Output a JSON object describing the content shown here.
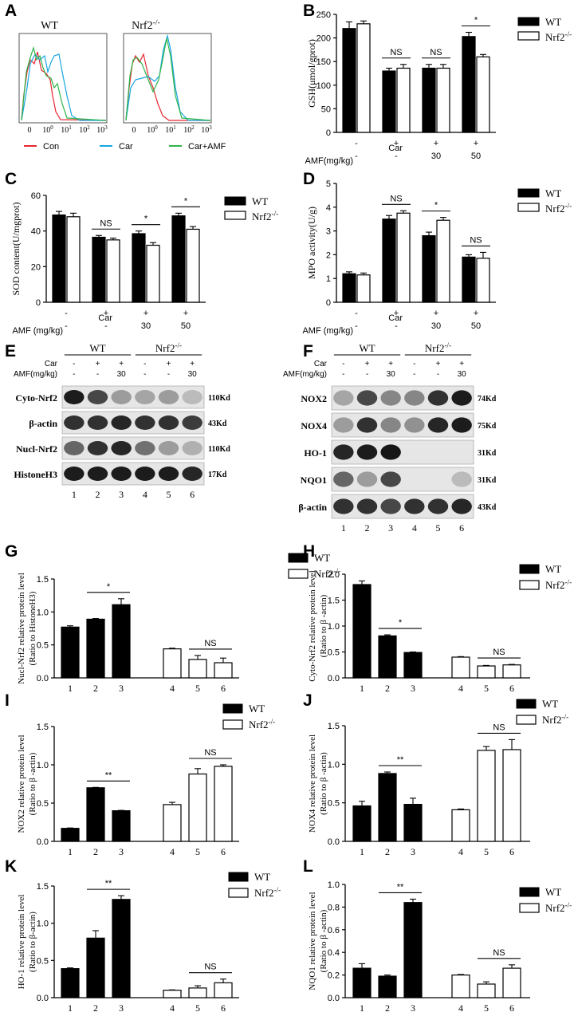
{
  "panel_letters": {
    "A": "A",
    "B": "B",
    "C": "C",
    "D": "D",
    "E": "E",
    "F": "F",
    "G": "G",
    "H": "H",
    "I": "I",
    "J": "J",
    "K": "K",
    "L": "L"
  },
  "colors": {
    "wt": "#000000",
    "ko": "#ffffff",
    "con": "#e8262f",
    "car": "#16a6e0",
    "car_amf": "#2db54a"
  },
  "panel_a": {
    "title_wt": "WT",
    "title_ko": "Nrf2",
    "title_ko_sup": "-/-",
    "legend": [
      "Con",
      "Car",
      "Car+AMF"
    ],
    "ticks": [
      "0",
      "10",
      "10",
      "10",
      "10"
    ],
    "tick_sups": [
      "",
      "0",
      "1",
      "2",
      "3"
    ]
  },
  "legend_wt": "WT",
  "legend_ko": "Nrf2",
  "legend_ko_sup": "-/-",
  "treat": {
    "car_label": "Car",
    "amf_label_B": "AMF(mg/kg)",
    "amf_label_C": "AMF (mg/kg)",
    "car_row": [
      "-",
      "+",
      "+",
      "+"
    ],
    "amf_row": [
      "-",
      "-",
      "30",
      "50"
    ]
  },
  "blots": {
    "E": {
      "header_wt": "WT",
      "header_ko": "Nrf2",
      "header_ko_sup": "-/-",
      "car_label": "Car",
      "amf_label": "AMF(mg/kg)",
      "car_row": [
        "-",
        "+",
        "+",
        "-",
        "+",
        "+"
      ],
      "amf_row": [
        "-",
        "-",
        "30",
        "-",
        "-",
        "30"
      ],
      "bands": [
        {
          "name": "Cyto-Nrf2",
          "kd": "110Kd"
        },
        {
          "name": "β-actin",
          "kd": "43Kd"
        },
        {
          "name": "Nucl-Nrf2",
          "kd": "110Kd"
        },
        {
          "name": "HistoneH3",
          "kd": "17Kd"
        }
      ],
      "lanes": [
        "1",
        "2",
        "3",
        "4",
        "5",
        "6"
      ]
    },
    "F": {
      "header_wt": "WT",
      "header_ko": "Nrf2",
      "header_ko_sup": "-/-",
      "car_label": "Car",
      "amf_label": "AMF(mg/kg)",
      "car_row": [
        "-",
        "+",
        "+",
        "-",
        "+",
        "+"
      ],
      "amf_row": [
        "-",
        "-",
        "30",
        "-",
        "-",
        "30"
      ],
      "bands": [
        {
          "name": "NOX2",
          "kd": "74Kd"
        },
        {
          "name": "NOX4",
          "kd": "75Kd"
        },
        {
          "name": "HO-1",
          "kd": "31Kd"
        },
        {
          "name": "NQO1",
          "kd": "31Kd"
        },
        {
          "name": "β-actin",
          "kd": "43Kd"
        }
      ],
      "lanes": [
        "1",
        "2",
        "3",
        "4",
        "5",
        "6"
      ]
    }
  },
  "chart_data": [
    {
      "id": "B",
      "type": "bar",
      "ylabel": "GSH(μmol/gprot)",
      "ylim": [
        0,
        250
      ],
      "yticks": [
        0,
        50,
        100,
        150,
        200,
        250
      ],
      "groups": 4,
      "series": [
        {
          "name": "WT",
          "values": [
            220,
            130,
            136,
            203
          ],
          "err": [
            14,
            6,
            8,
            9
          ]
        },
        {
          "name": "Nrf2-/-",
          "values": [
            230,
            136,
            136,
            160
          ],
          "err": [
            6,
            8,
            8,
            5
          ]
        }
      ],
      "annotations": [
        {
          "group": 1,
          "text": "NS"
        },
        {
          "group": 2,
          "text": "NS"
        },
        {
          "group": 3,
          "text": "*"
        }
      ]
    },
    {
      "id": "C",
      "type": "bar",
      "ylabel": "SOD content(U/mgprot)",
      "ylim": [
        0,
        60
      ],
      "yticks": [
        0,
        20,
        40,
        60
      ],
      "groups": 4,
      "series": [
        {
          "name": "WT",
          "values": [
            49,
            36.5,
            38.5,
            48.5
          ],
          "err": [
            2,
            1,
            1.5,
            1.5
          ]
        },
        {
          "name": "Nrf2-/-",
          "values": [
            48,
            35,
            32,
            41
          ],
          "err": [
            2,
            1,
            1.5,
            1.5
          ]
        }
      ],
      "annotations": [
        {
          "group": 1,
          "text": "NS"
        },
        {
          "group": 2,
          "text": "*"
        },
        {
          "group": 3,
          "text": "*"
        }
      ]
    },
    {
      "id": "D",
      "type": "bar",
      "ylabel": "MPO activity(U/g)",
      "ylim": [
        0,
        5
      ],
      "yticks": [
        0,
        1,
        2,
        3,
        4,
        5
      ],
      "groups": 4,
      "series": [
        {
          "name": "WT",
          "values": [
            1.2,
            3.5,
            2.8,
            1.9
          ],
          "err": [
            0.08,
            0.15,
            0.15,
            0.1
          ]
        },
        {
          "name": "Nrf2-/-",
          "values": [
            1.15,
            3.75,
            3.45,
            1.85
          ],
          "err": [
            0.08,
            0.1,
            0.12,
            0.25
          ]
        }
      ],
      "annotations": [
        {
          "group": 1,
          "text": "NS"
        },
        {
          "group": 2,
          "text": "*"
        },
        {
          "group": 3,
          "text": "NS"
        }
      ]
    },
    {
      "id": "G",
      "type": "bar",
      "ylabel": [
        "Nucl-Nrf2 relative protein level",
        "(Ratio to HistoneH3)"
      ],
      "ylim": [
        0,
        1.5
      ],
      "yticks": [
        0,
        0.5,
        1.0,
        1.5
      ],
      "categories": [
        "1",
        "2",
        "3",
        "4",
        "5",
        "6"
      ],
      "values": [
        0.77,
        0.89,
        1.11,
        0.44,
        0.28,
        0.23
      ],
      "err": [
        0.02,
        0.01,
        0.09,
        0.01,
        0.06,
        0.07
      ],
      "annotations": [
        {
          "from": 1,
          "to": 2,
          "text": "*"
        },
        {
          "from": 4,
          "to": 5,
          "text": "NS"
        }
      ]
    },
    {
      "id": "H",
      "type": "bar",
      "ylabel": [
        "Cyto-Nrf2 relative protein level",
        "(Ratio to β -actin)"
      ],
      "ylim": [
        0,
        2.0
      ],
      "yticks": [
        0,
        0.5,
        1.0,
        1.5,
        2.0
      ],
      "categories": [
        "1",
        "2",
        "3",
        "4",
        "5",
        "6"
      ],
      "values": [
        1.8,
        0.81,
        0.49,
        0.4,
        0.23,
        0.25
      ],
      "err": [
        0.07,
        0.02,
        0.01,
        0.01,
        0.01,
        0.01
      ],
      "annotations": [
        {
          "from": 1,
          "to": 2,
          "text": "*"
        },
        {
          "from": 4,
          "to": 5,
          "text": "NS"
        }
      ]
    },
    {
      "id": "I",
      "type": "bar",
      "ylabel": [
        "NOX2 relative protein level",
        "(Ratio to β -actin)"
      ],
      "ylim": [
        0,
        1.5
      ],
      "yticks": [
        0,
        0.5,
        1.0,
        1.5
      ],
      "categories": [
        "1",
        "2",
        "3",
        "4",
        "5",
        "6"
      ],
      "values": [
        0.17,
        0.7,
        0.4,
        0.48,
        0.88,
        0.98
      ],
      "err": [
        0.005,
        0.005,
        0.005,
        0.03,
        0.07,
        0.02
      ],
      "annotations": [
        {
          "from": 1,
          "to": 2,
          "text": "**"
        },
        {
          "from": 4,
          "to": 5,
          "text": "NS"
        }
      ]
    },
    {
      "id": "J",
      "type": "bar",
      "ylabel": [
        "NOX4 relative protein level",
        "(Ratio to β -actin)"
      ],
      "ylim": [
        0,
        1.5
      ],
      "yticks": [
        0,
        0.5,
        1.0,
        1.5
      ],
      "categories": [
        "1",
        "2",
        "3",
        "4",
        "5",
        "6"
      ],
      "values": [
        0.46,
        0.88,
        0.48,
        0.41,
        1.18,
        1.19
      ],
      "err": [
        0.06,
        0.02,
        0.08,
        0.01,
        0.05,
        0.13
      ],
      "annotations": [
        {
          "from": 1,
          "to": 2,
          "text": "**"
        },
        {
          "from": 4,
          "to": 5,
          "text": "NS"
        }
      ]
    },
    {
      "id": "K",
      "type": "bar",
      "ylabel": [
        "HO-1 relative protein level",
        "(Ratio to β-actin)"
      ],
      "ylim": [
        0,
        1.5
      ],
      "yticks": [
        0,
        0.5,
        1.0,
        1.5
      ],
      "categories": [
        "1",
        "2",
        "3",
        "4",
        "5",
        "6"
      ],
      "values": [
        0.39,
        0.8,
        1.32,
        0.1,
        0.13,
        0.2
      ],
      "err": [
        0.01,
        0.1,
        0.05,
        0.005,
        0.03,
        0.05
      ],
      "annotations": [
        {
          "from": 1,
          "to": 2,
          "text": "**"
        },
        {
          "from": 4,
          "to": 5,
          "text": "NS"
        }
      ]
    },
    {
      "id": "L",
      "type": "bar",
      "ylabel": [
        "NQO1 relative protein level",
        "(Ratio to β -actin)"
      ],
      "ylim": [
        0,
        1.0
      ],
      "yticks": [
        0,
        0.2,
        0.4,
        0.6,
        0.8,
        1.0
      ],
      "categories": [
        "1",
        "2",
        "3",
        "4",
        "5",
        "6"
      ],
      "values": [
        0.26,
        0.19,
        0.84,
        0.2,
        0.12,
        0.26
      ],
      "err": [
        0.04,
        0.01,
        0.03,
        0.005,
        0.02,
        0.03
      ],
      "annotations": [
        {
          "from": 1,
          "to": 2,
          "text": "**"
        },
        {
          "from": 4,
          "to": 5,
          "text": "NS"
        }
      ]
    }
  ]
}
